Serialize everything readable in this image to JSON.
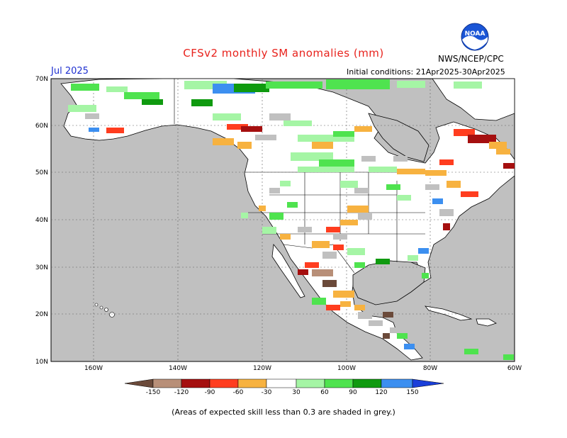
{
  "header": {
    "title": "CFSv2 monthly SM anomalies (mm)",
    "period": "Jul 2025",
    "initial_conditions": "Initial conditions: 21Apr2025-30Apr2025",
    "agency": "NWS/NCEP/CPC",
    "logo_text": "NOAA"
  },
  "map": {
    "lat_labels": [
      "70N",
      "60N",
      "50N",
      "40N",
      "30N",
      "20N",
      "10N"
    ],
    "lon_labels": [
      "160W",
      "140W",
      "120W",
      "100W",
      "80W",
      "60W"
    ],
    "colors": {
      "ocean": "#c0c0c0",
      "land": "#ffffff",
      "skill_grey": "#c0c0c0"
    }
  },
  "colorbar": {
    "labels": [
      "-150",
      "-120",
      "-90",
      "-60",
      "-30",
      "30",
      "60",
      "90",
      "120",
      "150"
    ],
    "colors": [
      "#6b4a3a",
      "#b88f78",
      "#a50f0f",
      "#ff3d1f",
      "#f7b240",
      "#ffffff",
      "#a5f5a5",
      "#4fe34f",
      "#0f9a0f",
      "#3c8ff0",
      "#1a3fd9"
    ]
  },
  "footnote": "(Areas of expected skill less than 0.3 are shaded in grey.)"
}
